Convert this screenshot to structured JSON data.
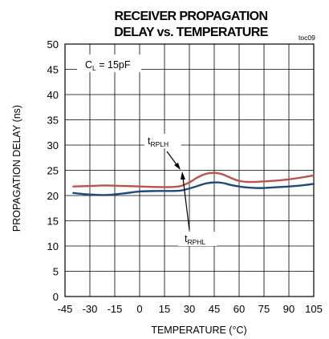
{
  "chart_data": {
    "type": "line",
    "title_lines": [
      "RECEIVER PROPAGATION",
      "DELAY vs. TEMPERATURE"
    ],
    "figure_tag": "toc09",
    "xlabel": "TEMPERATURE (°C)",
    "ylabel": "PROPAGATION DELAY (ns)",
    "xlim": [
      -45,
      105
    ],
    "ylim": [
      0,
      50
    ],
    "xticks": [
      -45,
      -30,
      -15,
      0,
      15,
      30,
      45,
      60,
      75,
      90,
      105
    ],
    "yticks": [
      0,
      5,
      10,
      15,
      20,
      25,
      30,
      35,
      40,
      45,
      50
    ],
    "grid": true,
    "condition": {
      "main": "C",
      "sub": "L",
      "rest": " = 15pF"
    },
    "series": [
      {
        "label_main": "t",
        "label_sub": "RPLH",
        "color": "#c0504d",
        "x": [
          -40,
          -30,
          -20,
          -10,
          0,
          10,
          20,
          25,
          30,
          35,
          40,
          45,
          50,
          55,
          60,
          65,
          70,
          75,
          80,
          90,
          100,
          105
        ],
        "y": [
          21.8,
          21.9,
          22.0,
          21.9,
          21.8,
          21.7,
          21.7,
          21.9,
          22.6,
          23.6,
          24.3,
          24.5,
          24.2,
          23.5,
          22.9,
          22.7,
          22.7,
          22.8,
          22.9,
          23.2,
          23.7,
          24.0
        ]
      },
      {
        "label_main": "t",
        "label_sub": "RPHL",
        "color": "#1f497d",
        "x": [
          -40,
          -30,
          -20,
          -10,
          0,
          10,
          20,
          25,
          30,
          35,
          40,
          45,
          50,
          55,
          60,
          65,
          70,
          75,
          80,
          90,
          100,
          105
        ],
        "y": [
          20.5,
          20.2,
          20.1,
          20.4,
          20.8,
          20.9,
          20.9,
          21.0,
          21.4,
          21.9,
          22.4,
          22.6,
          22.5,
          22.1,
          21.8,
          21.6,
          21.5,
          21.5,
          21.6,
          21.8,
          22.1,
          22.3
        ]
      }
    ]
  }
}
